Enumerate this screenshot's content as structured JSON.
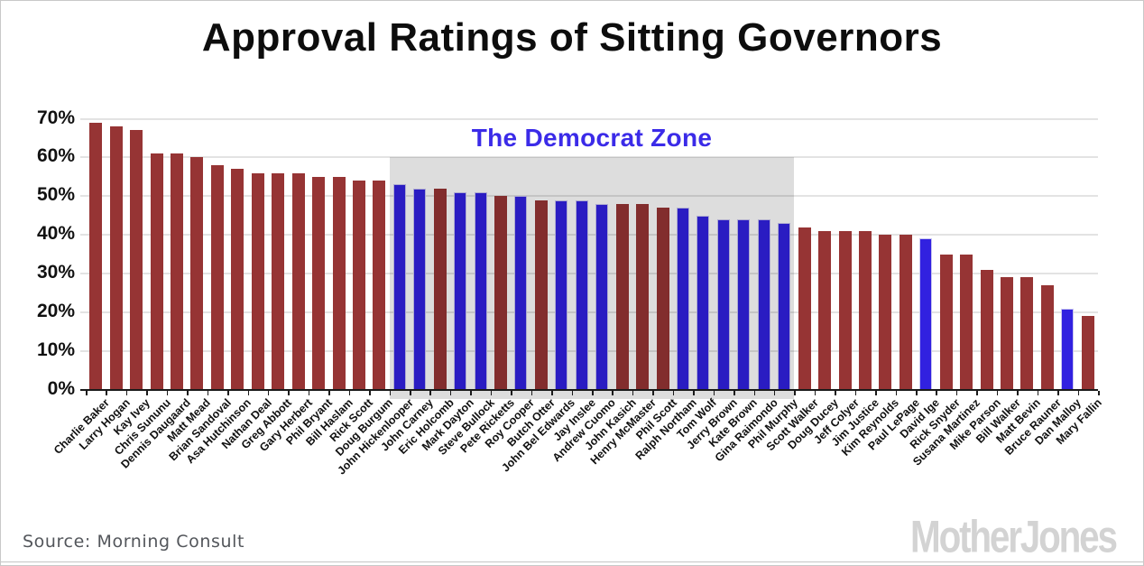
{
  "title": "Approval Ratings of Sitting Governors",
  "annotation_label": "The Democrat Zone",
  "source_text": "Source: Morning Consult",
  "logo_text": "MotherJones",
  "colors": {
    "republican_bar": "#963434",
    "democrat_bar": "#3121e0",
    "democrat_bar_outline": "#c9c6f0",
    "zone_overlay": "rgba(0,0,0,0.135)",
    "annotation_text": "#3b2be8",
    "gridline": "#e3e3e3",
    "axis": "#1a1a1a",
    "title_text": "#0d0d0d",
    "source_text_color": "#53565b",
    "logo_color": "#d3d3d3"
  },
  "chart_data": {
    "type": "bar",
    "title": "Approval Ratings of Sitting Governors",
    "xlabel": "",
    "ylabel": "",
    "ylim": [
      0,
      70
    ],
    "ytick_step": 10,
    "yticks": [
      "70%",
      "60%",
      "50%",
      "40%",
      "30%",
      "20%",
      "10%",
      "0%"
    ],
    "grid": "horizontal",
    "legend_position": "none",
    "annotation": "The Democrat Zone",
    "zone": {
      "start": "John Hickenlooper",
      "end": "Phil Murphy",
      "top_value": 60
    },
    "unit": "%",
    "governors": [
      {
        "name": "Charlie Baker",
        "value": 69,
        "party": "R"
      },
      {
        "name": "Larry Hogan",
        "value": 68,
        "party": "R"
      },
      {
        "name": "Kay Ivey",
        "value": 67,
        "party": "R"
      },
      {
        "name": "Chris Sununu",
        "value": 61,
        "party": "R"
      },
      {
        "name": "Dennis Daugaard",
        "value": 61,
        "party": "R"
      },
      {
        "name": "Matt Mead",
        "value": 60,
        "party": "R"
      },
      {
        "name": "Brian Sandoval",
        "value": 58,
        "party": "R"
      },
      {
        "name": "Asa Hutchinson",
        "value": 57,
        "party": "R"
      },
      {
        "name": "Nathan Deal",
        "value": 56,
        "party": "R"
      },
      {
        "name": "Greg Abbott",
        "value": 56,
        "party": "R"
      },
      {
        "name": "Gary Herbert",
        "value": 56,
        "party": "R"
      },
      {
        "name": "Phil Bryant",
        "value": 55,
        "party": "R"
      },
      {
        "name": "Bill Haslam",
        "value": 55,
        "party": "R"
      },
      {
        "name": "Rick Scott",
        "value": 54,
        "party": "R"
      },
      {
        "name": "Doug Burgum",
        "value": 54,
        "party": "R"
      },
      {
        "name": "John Hickenlooper",
        "value": 53,
        "party": "D"
      },
      {
        "name": "John Carney",
        "value": 52,
        "party": "D"
      },
      {
        "name": "Eric Holcomb",
        "value": 52,
        "party": "R"
      },
      {
        "name": "Mark Dayton",
        "value": 51,
        "party": "D"
      },
      {
        "name": "Steve Bullock",
        "value": 51,
        "party": "D"
      },
      {
        "name": "Pete Ricketts",
        "value": 50,
        "party": "R"
      },
      {
        "name": "Roy Cooper",
        "value": 50,
        "party": "D"
      },
      {
        "name": "Butch Otter",
        "value": 49,
        "party": "R"
      },
      {
        "name": "John Bel Edwards",
        "value": 49,
        "party": "D"
      },
      {
        "name": "Jay Inslee",
        "value": 49,
        "party": "D"
      },
      {
        "name": "Andrew Cuomo",
        "value": 48,
        "party": "D"
      },
      {
        "name": "John Kasich",
        "value": 48,
        "party": "R"
      },
      {
        "name": "Henry McMaster",
        "value": 48,
        "party": "R"
      },
      {
        "name": "Phil Scott",
        "value": 47,
        "party": "R"
      },
      {
        "name": "Ralph Northam",
        "value": 47,
        "party": "D"
      },
      {
        "name": "Tom Wolf",
        "value": 45,
        "party": "D"
      },
      {
        "name": "Jerry Brown",
        "value": 44,
        "party": "D"
      },
      {
        "name": "Kate Brown",
        "value": 44,
        "party": "D"
      },
      {
        "name": "Gina Raimondo",
        "value": 44,
        "party": "D"
      },
      {
        "name": "Phil Murphy",
        "value": 43,
        "party": "D"
      },
      {
        "name": "Scott Walker",
        "value": 42,
        "party": "R"
      },
      {
        "name": "Doug Ducey",
        "value": 41,
        "party": "R"
      },
      {
        "name": "Jeff Colyer",
        "value": 41,
        "party": "R"
      },
      {
        "name": "Jim Justice",
        "value": 41,
        "party": "R"
      },
      {
        "name": "Kim Reynolds",
        "value": 40,
        "party": "R"
      },
      {
        "name": "Paul LePage",
        "value": 40,
        "party": "R"
      },
      {
        "name": "David Ige",
        "value": 39,
        "party": "D"
      },
      {
        "name": "Rick Snyder",
        "value": 35,
        "party": "R"
      },
      {
        "name": "Susana Martinez",
        "value": 35,
        "party": "R"
      },
      {
        "name": "Mike Parson",
        "value": 31,
        "party": "R"
      },
      {
        "name": "Bill Walker",
        "value": 29,
        "party": "R"
      },
      {
        "name": "Matt Bevin",
        "value": 29,
        "party": "R"
      },
      {
        "name": "Bruce Rauner",
        "value": 27,
        "party": "R"
      },
      {
        "name": "Dan Malloy",
        "value": 21,
        "party": "D"
      },
      {
        "name": "Mary Fallin",
        "value": 19,
        "party": "R"
      }
    ]
  }
}
